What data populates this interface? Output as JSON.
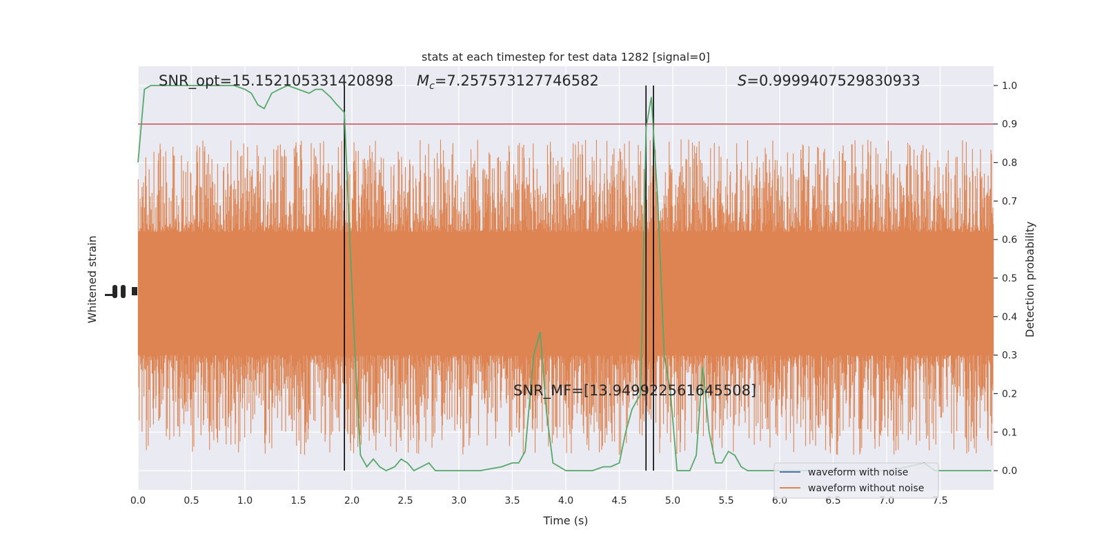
{
  "chart_data": {
    "type": "line",
    "title": "stats at each timestep for test data 1282 [signal=0]",
    "xlabel": "Time (s)",
    "ylabel_left": "Whitened strain",
    "ylabel_right": "Detection probability",
    "xlim": [
      0,
      8
    ],
    "ylim_right": [
      -0.05,
      1.05
    ],
    "x_ticks": [
      "0.0",
      "0.5",
      "1.0",
      "1.5",
      "2.0",
      "2.5",
      "3.0",
      "3.5",
      "4.0",
      "4.5",
      "5.0",
      "5.5",
      "6.0",
      "6.5",
      "7.0",
      "7.5"
    ],
    "y_ticks_right": [
      "0.0",
      "0.1",
      "0.2",
      "0.3",
      "0.4",
      "0.5",
      "0.6",
      "0.7",
      "0.8",
      "0.9",
      "1.0"
    ],
    "grid": true,
    "background": "#eaeaf2",
    "annotations": {
      "snr_opt": "SNR_opt=15.152105331420898",
      "mc_symbol": "M",
      "mc_sub": "c",
      "mc_value": "=7.257573127746582",
      "s_symbol": "S",
      "s_value": "=0.9999407529830933",
      "snr_mf": "SNR_MF=[13.949922561645508]"
    },
    "threshold": {
      "y": 0.9,
      "color": "#c44e52"
    },
    "vertical_lines_x": [
      1.93,
      4.75,
      4.82
    ],
    "legend": {
      "position": "lower right",
      "entries": [
        {
          "label": "waveform with noise",
          "color": "#4c72b0"
        },
        {
          "label": "waveform without noise",
          "color": "#dd8452"
        }
      ]
    },
    "series": [
      {
        "name": "waveform with noise",
        "color": "#4c72b0",
        "style": "dense noise around 0.5, amplitude reaching 0.0 to 0.95"
      },
      {
        "name": "waveform without noise",
        "color": "#dd8452",
        "style": "dense strain trace"
      },
      {
        "name": "detection probability",
        "color": "#55a868",
        "x": [
          0.0,
          0.06,
          0.12,
          0.18,
          0.3,
          0.5,
          0.7,
          0.9,
          1.0,
          1.06,
          1.12,
          1.18,
          1.25,
          1.32,
          1.4,
          1.5,
          1.6,
          1.66,
          1.72,
          1.8,
          1.86,
          1.93,
          1.98,
          2.03,
          2.08,
          2.14,
          2.2,
          2.26,
          2.32,
          2.4,
          2.46,
          2.52,
          2.58,
          2.65,
          2.72,
          2.78,
          2.85,
          2.92,
          3.0,
          3.2,
          3.4,
          3.5,
          3.56,
          3.62,
          3.7,
          3.76,
          3.82,
          3.88,
          3.94,
          4.0,
          4.06,
          4.15,
          4.25,
          4.35,
          4.42,
          4.5,
          4.56,
          4.62,
          4.7,
          4.75,
          4.8,
          4.86,
          4.92,
          4.98,
          5.04,
          5.1,
          5.16,
          5.22,
          5.28,
          5.34,
          5.4,
          5.46,
          5.52,
          5.58,
          5.64,
          5.7,
          5.76,
          5.9,
          6.2,
          6.6,
          7.0,
          7.2,
          7.35,
          7.45,
          7.55,
          7.7,
          7.85,
          7.98
        ],
        "y": [
          0.8,
          0.99,
          1.0,
          1.0,
          1.0,
          1.0,
          1.0,
          1.0,
          0.99,
          0.98,
          0.95,
          0.94,
          0.98,
          0.99,
          1.0,
          0.99,
          0.98,
          0.99,
          0.99,
          0.97,
          0.95,
          0.93,
          0.6,
          0.3,
          0.04,
          0.01,
          0.03,
          0.01,
          0.0,
          0.01,
          0.03,
          0.02,
          0.0,
          0.01,
          0.02,
          0.0,
          0.0,
          0.0,
          0.0,
          0.0,
          0.01,
          0.02,
          0.02,
          0.05,
          0.3,
          0.36,
          0.15,
          0.02,
          0.01,
          0.0,
          0.0,
          0.0,
          0.0,
          0.01,
          0.01,
          0.02,
          0.1,
          0.16,
          0.2,
          0.89,
          0.97,
          0.7,
          0.3,
          0.2,
          0.0,
          0.0,
          0.0,
          0.04,
          0.27,
          0.1,
          0.02,
          0.02,
          0.05,
          0.04,
          0.01,
          0.0,
          0.0,
          0.0,
          0.0,
          0.0,
          0.0,
          0.01,
          0.02,
          0.0,
          0.0,
          0.0,
          0.0,
          0.0
        ]
      }
    ]
  }
}
